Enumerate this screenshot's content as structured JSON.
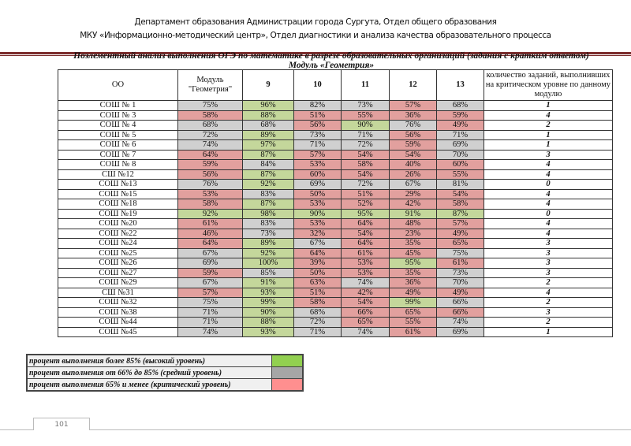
{
  "header": {
    "line1": "Департамент образования Администрации города Сургута, Отдел общего образования",
    "line2": "МКУ «Информационно-методический центр», Отдел диагностики и анализа качества образовательного процесса"
  },
  "title": {
    "line1": "Поэлементный анализ выполнения ОГЭ по математике в разрезе образовательных организаций (задания с кратким ответом)",
    "line2": "Модуль «Геометрия»"
  },
  "colors": {
    "high": "#c4d79b",
    "medium": "#d0d0d0",
    "critical": "#e2a09e",
    "legend_high": "#92d050",
    "legend_medium": "#a6a6a6",
    "legend_critical": "#ff8f8f"
  },
  "table": {
    "columns": [
      "ОО",
      "Модуль \"Геометрия\"",
      "9",
      "10",
      "11",
      "12",
      "13",
      "количество заданий, выполнивших на критическом уровне по данному модулю"
    ],
    "rows": [
      {
        "org": "СОШ № 1",
        "vals": [
          "75%",
          "96%",
          "82%",
          "73%",
          "57%",
          "68%"
        ],
        "levels": "sgssrs",
        "count": "1"
      },
      {
        "org": "СОШ № 3",
        "vals": [
          "58%",
          "88%",
          "51%",
          "55%",
          "36%",
          "59%"
        ],
        "levels": "rgrrrr",
        "count": "4"
      },
      {
        "org": "СОШ № 4",
        "vals": [
          "68%",
          "68%",
          "56%",
          "90%",
          "76%",
          "49%"
        ],
        "levels": "ssrgsr",
        "count": "2"
      },
      {
        "org": "СОШ № 5",
        "vals": [
          "72%",
          "89%",
          "73%",
          "71%",
          "56%",
          "71%"
        ],
        "levels": "sgssrs",
        "count": "1"
      },
      {
        "org": "СОШ № 6",
        "vals": [
          "74%",
          "97%",
          "71%",
          "72%",
          "59%",
          "69%"
        ],
        "levels": "sgssrs",
        "count": "1"
      },
      {
        "org": "СОШ № 7",
        "vals": [
          "64%",
          "87%",
          "57%",
          "54%",
          "54%",
          "70%"
        ],
        "levels": "rgrrrs",
        "count": "3"
      },
      {
        "org": "СОШ № 8",
        "vals": [
          "59%",
          "84%",
          "53%",
          "58%",
          "40%",
          "60%"
        ],
        "levels": "rsrrrr",
        "count": "4"
      },
      {
        "org": "СШ №12",
        "vals": [
          "56%",
          "87%",
          "60%",
          "54%",
          "26%",
          "55%"
        ],
        "levels": "rgrrrr",
        "count": "4"
      },
      {
        "org": "СОШ №13",
        "vals": [
          "76%",
          "92%",
          "69%",
          "72%",
          "67%",
          "81%"
        ],
        "levels": "sgssss",
        "count": "0"
      },
      {
        "org": "СОШ №15",
        "vals": [
          "53%",
          "83%",
          "50%",
          "51%",
          "29%",
          "54%"
        ],
        "levels": "rsrrrr",
        "count": "4"
      },
      {
        "org": "СОШ №18",
        "vals": [
          "58%",
          "87%",
          "53%",
          "52%",
          "42%",
          "58%"
        ],
        "levels": "rgrrrr",
        "count": "4"
      },
      {
        "org": "СОШ №19",
        "vals": [
          "92%",
          "98%",
          "90%",
          "95%",
          "91%",
          "87%"
        ],
        "levels": "gggggg",
        "count": "0"
      },
      {
        "org": "СОШ №20",
        "vals": [
          "61%",
          "83%",
          "53%",
          "64%",
          "48%",
          "57%"
        ],
        "levels": "rsrrrr",
        "count": "4"
      },
      {
        "org": "СОШ №22",
        "vals": [
          "46%",
          "73%",
          "32%",
          "54%",
          "23%",
          "49%"
        ],
        "levels": "rsrrrr",
        "count": "4"
      },
      {
        "org": "СОШ №24",
        "vals": [
          "64%",
          "89%",
          "67%",
          "64%",
          "35%",
          "65%"
        ],
        "levels": "rgsrrr",
        "count": "3"
      },
      {
        "org": "СОШ №25",
        "vals": [
          "67%",
          "92%",
          "64%",
          "61%",
          "45%",
          "75%"
        ],
        "levels": "sgrrrs",
        "count": "3"
      },
      {
        "org": "СОШ №26",
        "vals": [
          "69%",
          "100%",
          "39%",
          "53%",
          "95%",
          "61%"
        ],
        "levels": "sgrrgr",
        "count": "3"
      },
      {
        "org": "СОШ №27",
        "vals": [
          "59%",
          "85%",
          "50%",
          "53%",
          "35%",
          "73%"
        ],
        "levels": "rsrrrs",
        "count": "3"
      },
      {
        "org": "СОШ №29",
        "vals": [
          "67%",
          "91%",
          "63%",
          "74%",
          "36%",
          "70%"
        ],
        "levels": "sgrsrs",
        "count": "2"
      },
      {
        "org": "СШ №31",
        "vals": [
          "57%",
          "93%",
          "51%",
          "42%",
          "49%",
          "49%"
        ],
        "levels": "rgrrrr",
        "count": "4"
      },
      {
        "org": "СОШ №32",
        "vals": [
          "75%",
          "99%",
          "58%",
          "54%",
          "99%",
          "66%"
        ],
        "levels": "sgrrgs",
        "count": "2"
      },
      {
        "org": "СОШ №38",
        "vals": [
          "71%",
          "90%",
          "68%",
          "66%",
          "65%",
          "66%"
        ],
        "levels": "sgsrrr",
        "count": "3"
      },
      {
        "org": "СОШ №44",
        "vals": [
          "71%",
          "88%",
          "72%",
          "65%",
          "55%",
          "74%"
        ],
        "levels": "sgsrrs",
        "count": "2"
      },
      {
        "org": "СОШ №45",
        "vals": [
          "74%",
          "93%",
          "71%",
          "74%",
          "61%",
          "69%"
        ],
        "levels": "sgssrs",
        "count": "1"
      }
    ]
  },
  "legend": [
    {
      "label": "процент выполнения более 85% (высокий уровень)",
      "level": "high"
    },
    {
      "label": "процент выполнения от 66% до 85%  (средний уровень)",
      "level": "medium"
    },
    {
      "label": "процент выполнения 65% и менее (критический уровень)",
      "level": "critical"
    }
  ],
  "footer": {
    "page_number": "101"
  }
}
